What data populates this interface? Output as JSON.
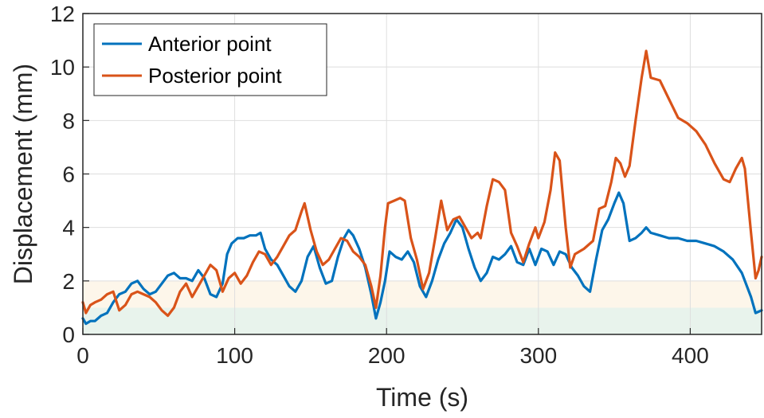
{
  "chart_data": {
    "type": "line",
    "title": "",
    "xlabel": "Time (s)",
    "ylabel": "Displacement (mm)",
    "xlim": [
      0,
      447
    ],
    "ylim": [
      0,
      12
    ],
    "xticks": [
      0,
      100,
      200,
      300,
      400
    ],
    "yticks": [
      0,
      2,
      4,
      6,
      8,
      10,
      12
    ],
    "grid": true,
    "legend_position": "top-left",
    "bands": [
      {
        "from": 0,
        "to": 1,
        "color": "#e8f3ec"
      },
      {
        "from": 1,
        "to": 2,
        "color": "#fdf6ea"
      }
    ],
    "series": [
      {
        "name": "Anterior point",
        "color": "#0072BD",
        "points": [
          [
            0,
            0.6
          ],
          [
            2,
            0.4
          ],
          [
            5,
            0.5
          ],
          [
            8,
            0.5
          ],
          [
            12,
            0.7
          ],
          [
            16,
            0.8
          ],
          [
            20,
            1.2
          ],
          [
            24,
            1.5
          ],
          [
            28,
            1.6
          ],
          [
            32,
            1.9
          ],
          [
            36,
            2.0
          ],
          [
            40,
            1.7
          ],
          [
            44,
            1.5
          ],
          [
            48,
            1.6
          ],
          [
            52,
            1.9
          ],
          [
            56,
            2.2
          ],
          [
            60,
            2.3
          ],
          [
            64,
            2.1
          ],
          [
            68,
            2.1
          ],
          [
            72,
            2.0
          ],
          [
            76,
            2.4
          ],
          [
            80,
            2.1
          ],
          [
            84,
            1.5
          ],
          [
            88,
            1.4
          ],
          [
            92,
            1.9
          ],
          [
            95,
            3.0
          ],
          [
            98,
            3.4
          ],
          [
            102,
            3.6
          ],
          [
            106,
            3.6
          ],
          [
            110,
            3.7
          ],
          [
            114,
            3.7
          ],
          [
            117,
            3.8
          ],
          [
            120,
            3.2
          ],
          [
            124,
            2.8
          ],
          [
            128,
            2.6
          ],
          [
            132,
            2.2
          ],
          [
            136,
            1.8
          ],
          [
            140,
            1.6
          ],
          [
            144,
            2.0
          ],
          [
            148,
            2.9
          ],
          [
            152,
            3.3
          ],
          [
            156,
            2.5
          ],
          [
            160,
            1.9
          ],
          [
            164,
            2.0
          ],
          [
            168,
            2.9
          ],
          [
            172,
            3.6
          ],
          [
            175,
            3.9
          ],
          [
            178,
            3.7
          ],
          [
            182,
            3.2
          ],
          [
            186,
            2.5
          ],
          [
            190,
            1.5
          ],
          [
            193,
            0.6
          ],
          [
            196,
            1.2
          ],
          [
            199,
            2.0
          ],
          [
            202,
            3.1
          ],
          [
            206,
            2.9
          ],
          [
            210,
            2.8
          ],
          [
            214,
            3.1
          ],
          [
            218,
            2.7
          ],
          [
            222,
            1.8
          ],
          [
            226,
            1.4
          ],
          [
            230,
            2.0
          ],
          [
            234,
            2.8
          ],
          [
            238,
            3.4
          ],
          [
            242,
            3.8
          ],
          [
            246,
            4.3
          ],
          [
            250,
            4.0
          ],
          [
            254,
            3.2
          ],
          [
            258,
            2.5
          ],
          [
            262,
            2.0
          ],
          [
            266,
            2.3
          ],
          [
            270,
            2.9
          ],
          [
            274,
            2.8
          ],
          [
            278,
            3.0
          ],
          [
            282,
            3.3
          ],
          [
            286,
            2.7
          ],
          [
            290,
            2.6
          ],
          [
            294,
            3.2
          ],
          [
            298,
            2.6
          ],
          [
            302,
            3.2
          ],
          [
            306,
            3.1
          ],
          [
            310,
            2.6
          ],
          [
            314,
            3.1
          ],
          [
            318,
            3.0
          ],
          [
            322,
            2.5
          ],
          [
            326,
            2.2
          ],
          [
            330,
            1.8
          ],
          [
            334,
            1.6
          ],
          [
            338,
            2.8
          ],
          [
            342,
            3.9
          ],
          [
            346,
            4.3
          ],
          [
            350,
            4.9
          ],
          [
            353,
            5.3
          ],
          [
            356,
            4.9
          ],
          [
            360,
            3.5
          ],
          [
            364,
            3.6
          ],
          [
            368,
            3.8
          ],
          [
            371,
            4.0
          ],
          [
            374,
            3.8
          ],
          [
            380,
            3.7
          ],
          [
            386,
            3.6
          ],
          [
            392,
            3.6
          ],
          [
            398,
            3.5
          ],
          [
            404,
            3.5
          ],
          [
            410,
            3.4
          ],
          [
            416,
            3.3
          ],
          [
            422,
            3.1
          ],
          [
            428,
            2.8
          ],
          [
            434,
            2.3
          ],
          [
            440,
            1.4
          ],
          [
            443,
            0.8
          ],
          [
            447,
            0.9
          ]
        ]
      },
      {
        "name": "Posterior point",
        "color": "#D95319",
        "points": [
          [
            0,
            1.2
          ],
          [
            2,
            0.8
          ],
          [
            5,
            1.1
          ],
          [
            8,
            1.2
          ],
          [
            12,
            1.3
          ],
          [
            16,
            1.5
          ],
          [
            20,
            1.6
          ],
          [
            24,
            0.9
          ],
          [
            28,
            1.1
          ],
          [
            32,
            1.5
          ],
          [
            36,
            1.6
          ],
          [
            40,
            1.5
          ],
          [
            44,
            1.4
          ],
          [
            48,
            1.2
          ],
          [
            52,
            0.9
          ],
          [
            56,
            0.7
          ],
          [
            60,
            1.0
          ],
          [
            64,
            1.6
          ],
          [
            68,
            1.9
          ],
          [
            72,
            1.4
          ],
          [
            76,
            1.8
          ],
          [
            80,
            2.2
          ],
          [
            84,
            2.6
          ],
          [
            88,
            2.4
          ],
          [
            92,
            1.6
          ],
          [
            96,
            2.1
          ],
          [
            100,
            2.3
          ],
          [
            104,
            1.9
          ],
          [
            108,
            2.2
          ],
          [
            112,
            2.7
          ],
          [
            116,
            3.1
          ],
          [
            120,
            3.0
          ],
          [
            124,
            2.6
          ],
          [
            128,
            2.9
          ],
          [
            132,
            3.3
          ],
          [
            136,
            3.7
          ],
          [
            140,
            3.9
          ],
          [
            144,
            4.6
          ],
          [
            146,
            4.9
          ],
          [
            150,
            3.9
          ],
          [
            154,
            3.1
          ],
          [
            158,
            2.6
          ],
          [
            162,
            2.8
          ],
          [
            166,
            3.2
          ],
          [
            170,
            3.6
          ],
          [
            174,
            3.5
          ],
          [
            178,
            3.1
          ],
          [
            182,
            2.9
          ],
          [
            186,
            2.6
          ],
          [
            190,
            1.8
          ],
          [
            193,
            1.0
          ],
          [
            196,
            2.2
          ],
          [
            199,
            4.0
          ],
          [
            201,
            4.9
          ],
          [
            205,
            5.0
          ],
          [
            209,
            5.1
          ],
          [
            212,
            5.0
          ],
          [
            216,
            3.6
          ],
          [
            220,
            2.8
          ],
          [
            224,
            1.7
          ],
          [
            228,
            2.3
          ],
          [
            232,
            3.6
          ],
          [
            236,
            5.0
          ],
          [
            240,
            3.9
          ],
          [
            244,
            4.3
          ],
          [
            248,
            4.4
          ],
          [
            252,
            4.0
          ],
          [
            256,
            3.6
          ],
          [
            260,
            3.8
          ],
          [
            262,
            3.6
          ],
          [
            266,
            4.8
          ],
          [
            270,
            5.8
          ],
          [
            274,
            5.7
          ],
          [
            278,
            5.4
          ],
          [
            282,
            3.8
          ],
          [
            286,
            3.3
          ],
          [
            290,
            2.7
          ],
          [
            294,
            3.4
          ],
          [
            298,
            4.0
          ],
          [
            300,
            3.6
          ],
          [
            304,
            4.2
          ],
          [
            308,
            5.4
          ],
          [
            311,
            6.8
          ],
          [
            314,
            6.5
          ],
          [
            318,
            4.0
          ],
          [
            321,
            2.5
          ],
          [
            324,
            3.0
          ],
          [
            330,
            3.2
          ],
          [
            336,
            3.5
          ],
          [
            340,
            4.7
          ],
          [
            344,
            4.8
          ],
          [
            348,
            5.7
          ],
          [
            351,
            6.6
          ],
          [
            354,
            6.4
          ],
          [
            357,
            5.9
          ],
          [
            360,
            6.3
          ],
          [
            364,
            8.0
          ],
          [
            368,
            9.6
          ],
          [
            371,
            10.6
          ],
          [
            374,
            9.6
          ],
          [
            380,
            9.5
          ],
          [
            386,
            8.8
          ],
          [
            392,
            8.1
          ],
          [
            398,
            7.9
          ],
          [
            404,
            7.6
          ],
          [
            410,
            7.1
          ],
          [
            416,
            6.4
          ],
          [
            422,
            5.8
          ],
          [
            426,
            5.7
          ],
          [
            430,
            6.2
          ],
          [
            434,
            6.6
          ],
          [
            436,
            6.2
          ],
          [
            440,
            3.8
          ],
          [
            443,
            2.1
          ],
          [
            445,
            2.4
          ],
          [
            447,
            2.9
          ]
        ]
      }
    ]
  }
}
